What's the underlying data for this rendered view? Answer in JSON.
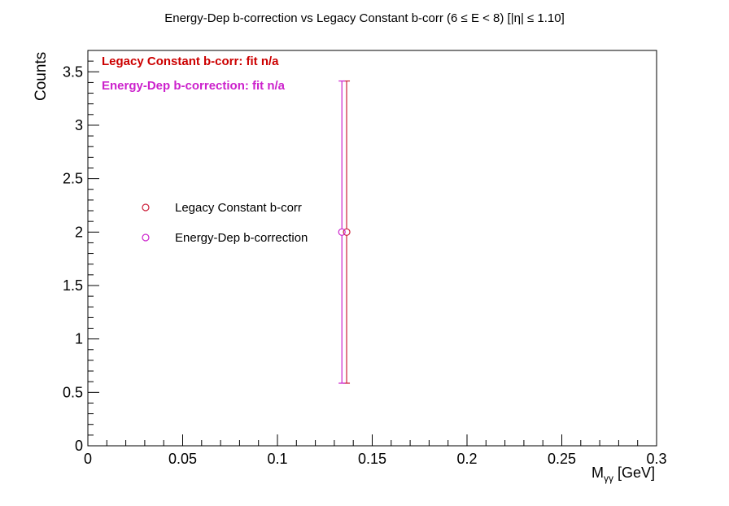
{
  "chart_data": {
    "type": "scatter",
    "title": "Energy-Dep b-correction vs Legacy Constant b-corr   (6 ≤ E < 8)   [|η| ≤ 1.10]",
    "xlabel_main": "M",
    "xlabel_sub": "γγ",
    "xlabel_unit": " [GeV]",
    "ylabel": "Counts",
    "xlim": [
      0,
      0.3
    ],
    "ylim": [
      0,
      3.7
    ],
    "x_ticks": [
      {
        "v": 0,
        "label": "0"
      },
      {
        "v": 0.05,
        "label": "0.05"
      },
      {
        "v": 0.1,
        "label": "0.1"
      },
      {
        "v": 0.15,
        "label": "0.15"
      },
      {
        "v": 0.2,
        "label": "0.2"
      },
      {
        "v": 0.25,
        "label": "0.25"
      },
      {
        "v": 0.3,
        "label": "0.3"
      }
    ],
    "y_ticks": [
      {
        "v": 0,
        "label": "0"
      },
      {
        "v": 0.5,
        "label": "0.5"
      },
      {
        "v": 1,
        "label": "1"
      },
      {
        "v": 1.5,
        "label": "1.5"
      },
      {
        "v": 2,
        "label": "2"
      },
      {
        "v": 2.5,
        "label": "2.5"
      },
      {
        "v": 3,
        "label": "3"
      },
      {
        "v": 3.5,
        "label": "3.5"
      }
    ],
    "legend_position": "center-left",
    "series": [
      {
        "name": "Legacy Constant b-corr",
        "color": "#cc1f3a",
        "points": [
          {
            "x": 0.1365,
            "y": 2,
            "err": 1.414
          }
        ]
      },
      {
        "name": "Energy-Dep b-correction",
        "color": "#cc22cc",
        "points": [
          {
            "x": 0.134,
            "y": 2,
            "err": 1.414
          }
        ]
      }
    ],
    "annotations": [
      {
        "text": "Legacy Constant b-corr:  fit n/a",
        "color": "#cc0000"
      },
      {
        "text": "Energy-Dep b-correction:  fit n/a",
        "color": "#cc22cc"
      }
    ]
  }
}
